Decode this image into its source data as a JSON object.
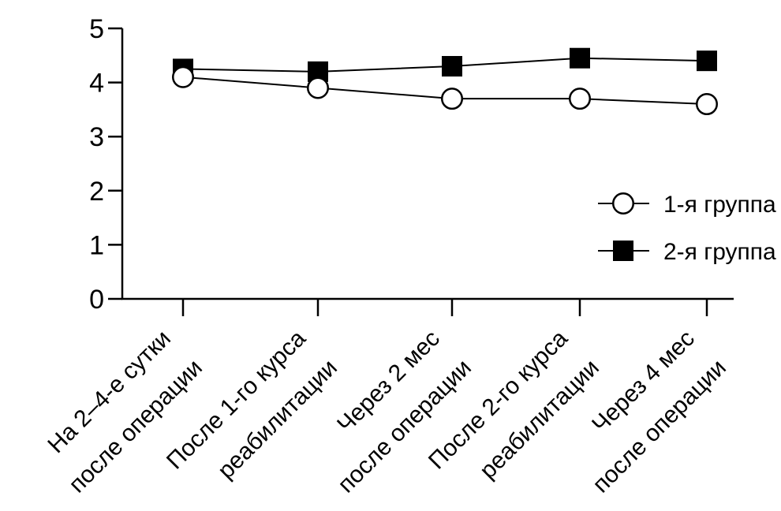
{
  "chart_data": {
    "type": "line",
    "title": "",
    "xlabel": "",
    "ylabel": "",
    "ylim": [
      0,
      5
    ],
    "yticks": [
      "0",
      "1",
      "2",
      "3",
      "4",
      "5"
    ],
    "grid": false,
    "background_color": "#ffffff",
    "line_color": "#000000",
    "categories": [
      {
        "lines": [
          "На 2–4-е сутки",
          "после операции"
        ]
      },
      {
        "lines": [
          "После 1-го курса",
          "реабилитации"
        ]
      },
      {
        "lines": [
          "Через 2 мес",
          "после операции"
        ]
      },
      {
        "lines": [
          "После 2-го курса",
          "реабилитации"
        ]
      },
      {
        "lines": [
          "Через 4 мес",
          "после операции"
        ]
      }
    ],
    "series": [
      {
        "name": "1-я группа",
        "marker": "circle",
        "marker_fill": "#ffffff",
        "marker_stroke": "#000000",
        "values": [
          4.1,
          3.9,
          3.7,
          3.7,
          3.6
        ]
      },
      {
        "name": "2-я группа",
        "marker": "square",
        "marker_fill": "#000000",
        "marker_stroke": "#000000",
        "values": [
          4.25,
          4.2,
          4.3,
          4.45,
          4.4
        ]
      }
    ],
    "legend": {
      "position": "right-middle",
      "entries": [
        "1-я группа",
        "2-я группа"
      ]
    }
  }
}
